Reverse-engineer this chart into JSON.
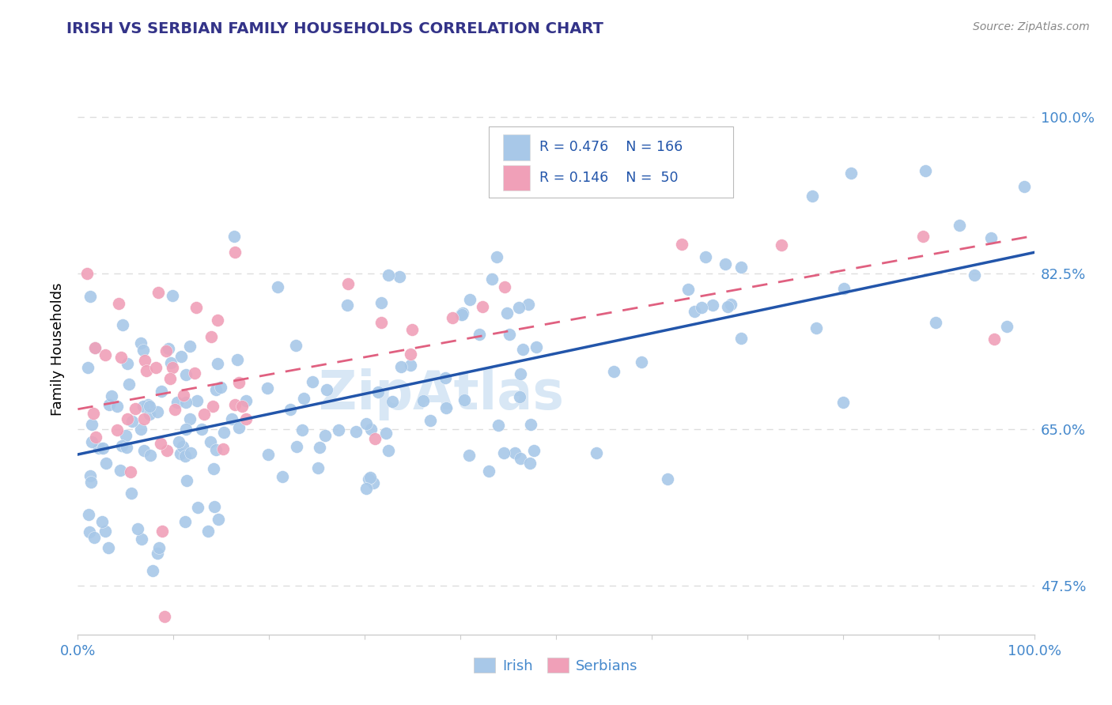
{
  "title": "IRISH VS SERBIAN FAMILY HOUSEHOLDS CORRELATION CHART",
  "source": "Source: ZipAtlas.com",
  "ylabel": "Family Households",
  "xlim": [
    0,
    1
  ],
  "ylim": [
    0.42,
    1.06
  ],
  "yticks": [
    0.475,
    0.65,
    0.825,
    1.0
  ],
  "ytick_labels": [
    "47.5%",
    "65.0%",
    "82.5%",
    "100.0%"
  ],
  "xticks": [
    0.0,
    0.1,
    0.2,
    0.3,
    0.4,
    0.5,
    0.6,
    0.7,
    0.8,
    0.9,
    1.0
  ],
  "xtick_labels_show": [
    "0.0%",
    "",
    "",
    "",
    "",
    "",
    "",
    "",
    "",
    "",
    "100.0%"
  ],
  "irish_color": "#a8c8e8",
  "serbian_color": "#f0a0b8",
  "irish_line_color": "#2255aa",
  "serbian_line_color": "#e06080",
  "watermark": "ZipAtlas",
  "irish_seed": 12,
  "serbian_seed": 7,
  "n_irish": 166,
  "n_serbian": 50,
  "irish_slope": 0.25,
  "irish_intercept": 0.615,
  "irish_noise": 0.075,
  "serbian_slope": 0.15,
  "serbian_intercept": 0.69,
  "serbian_noise": 0.07,
  "grid_color": "#dddddd",
  "title_color": "#333388",
  "right_label_color": "#4488cc",
  "bottom_label_color": "#4488cc"
}
